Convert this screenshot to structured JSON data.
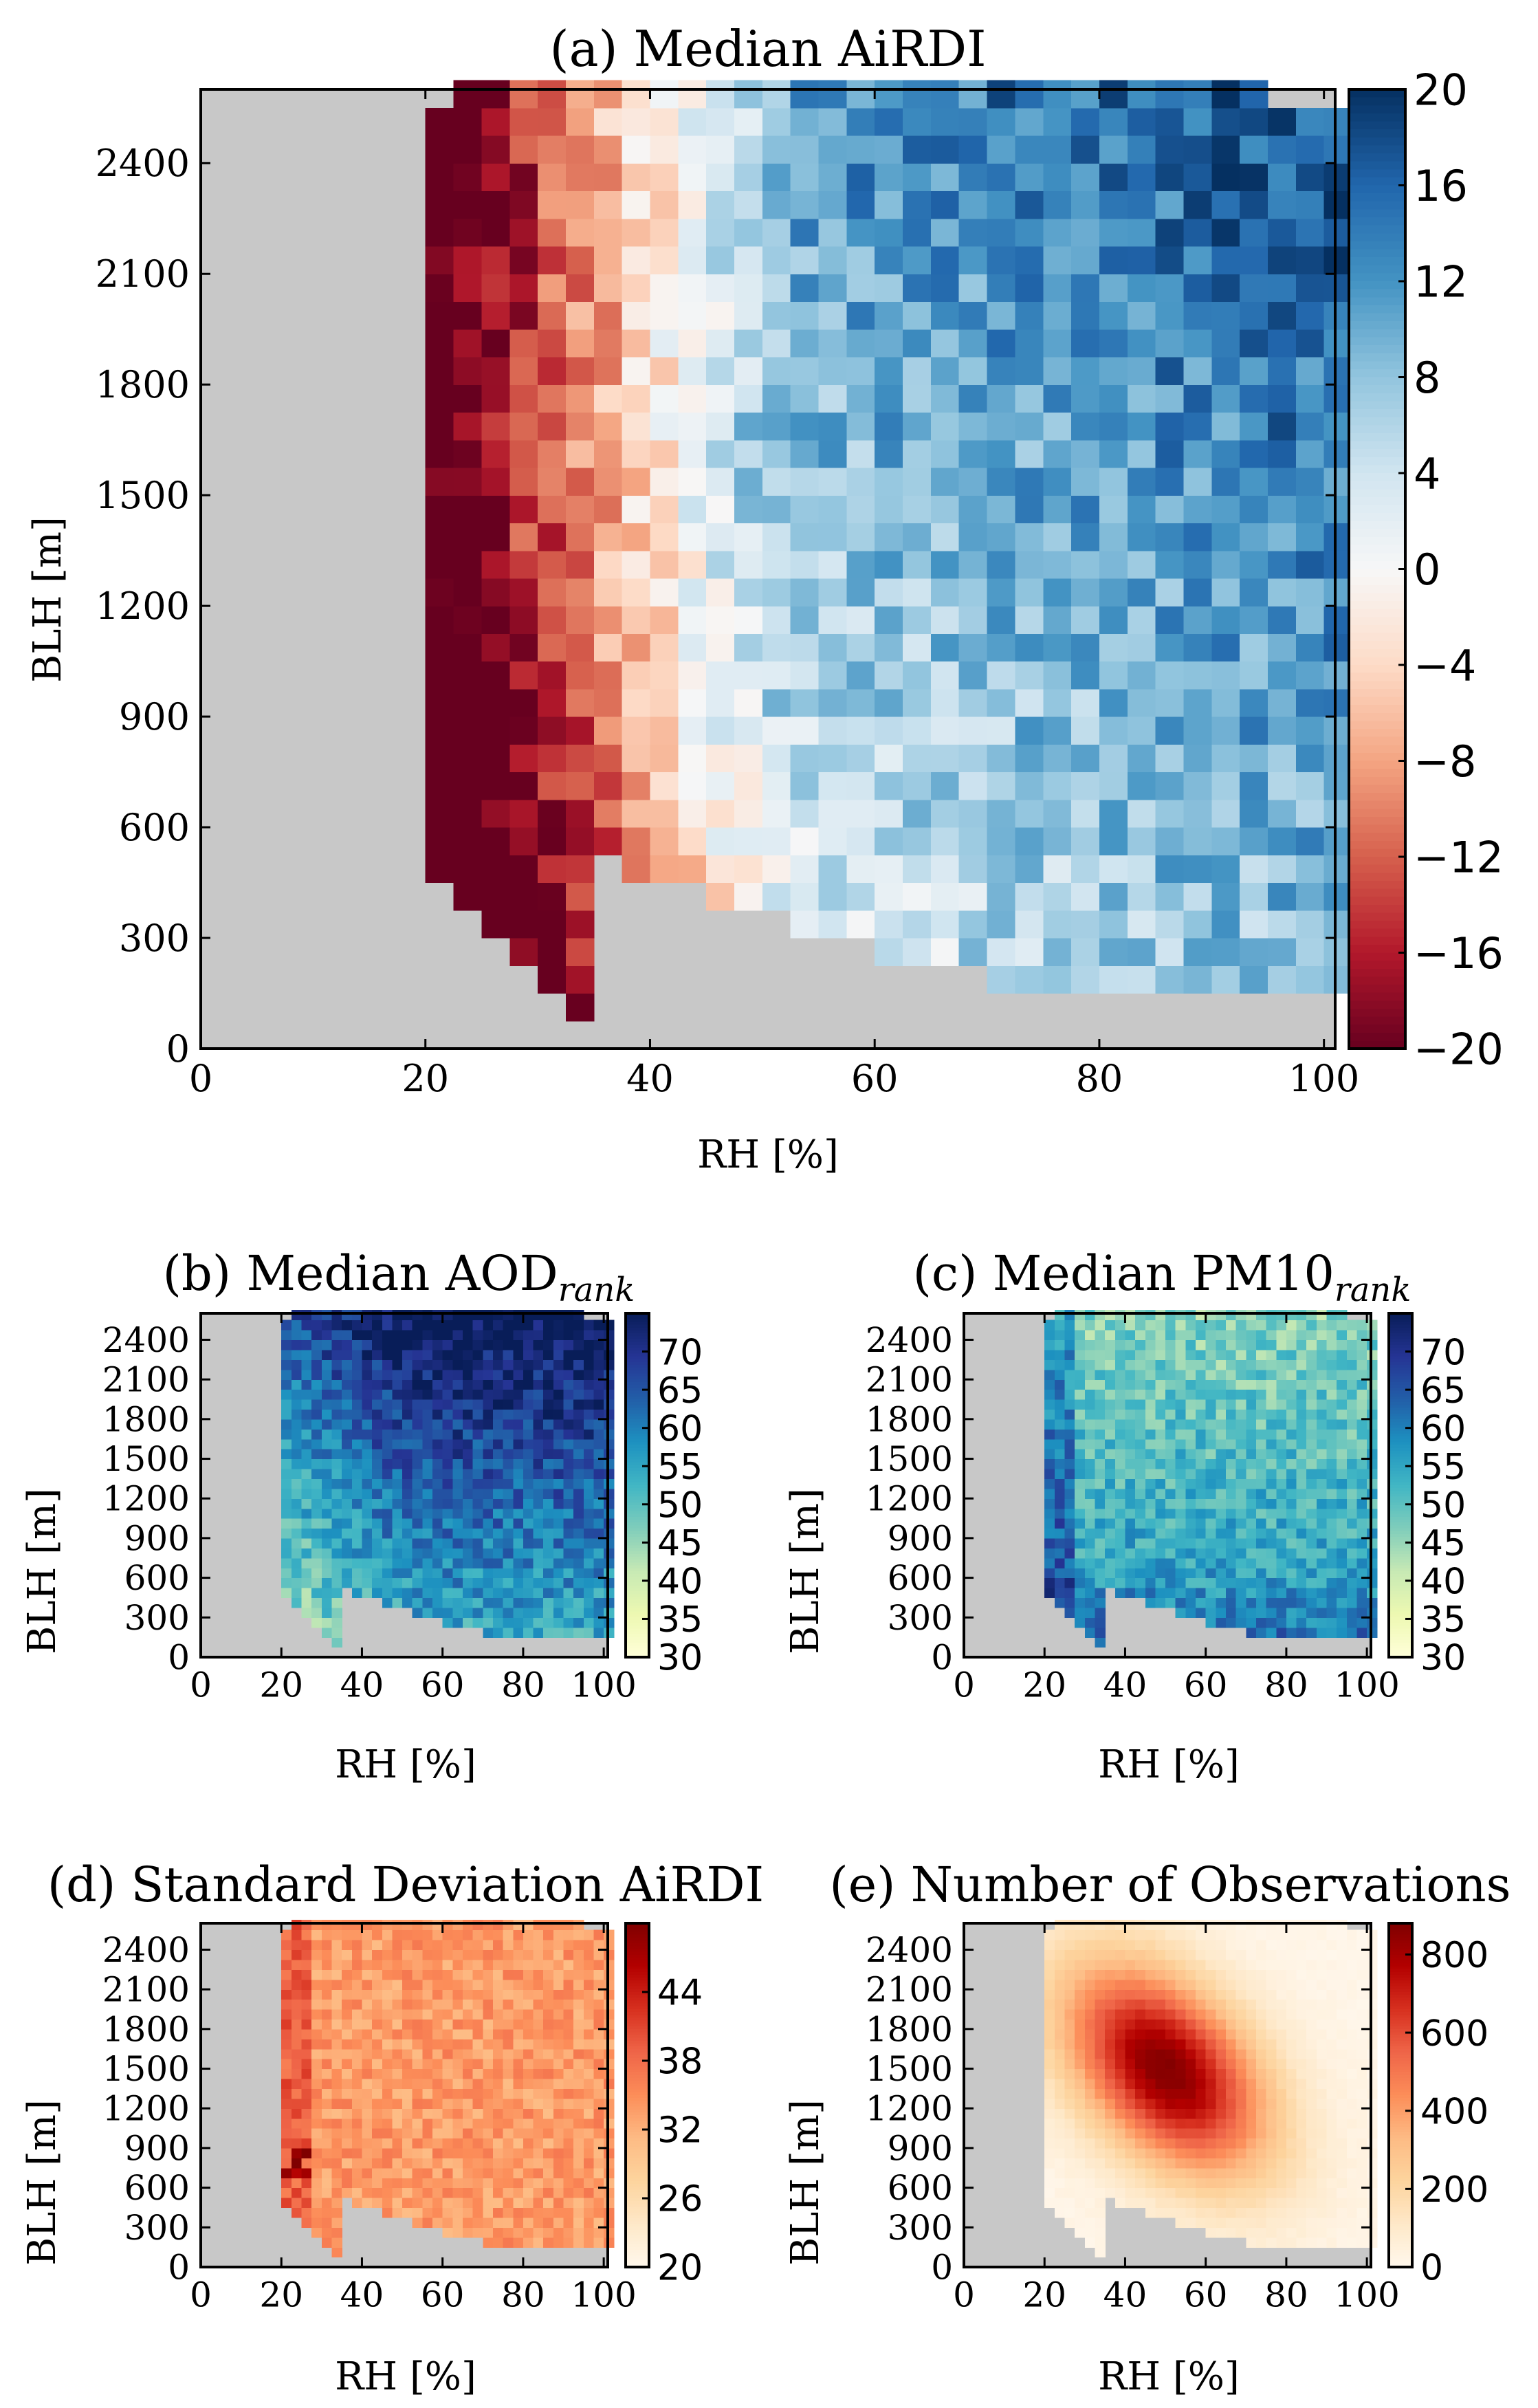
{
  "chart_data": [
    {
      "id": "a",
      "type": "heatmap",
      "title": "(a) Median AiRDI",
      "title_sub": "",
      "xlabel": "RH [%]",
      "ylabel": "BLH [m]",
      "xlim": [
        0,
        101
      ],
      "ylim": [
        0,
        2600
      ],
      "xticks": [
        0,
        20,
        40,
        60,
        80,
        100
      ],
      "yticks": [
        0,
        300,
        600,
        900,
        1200,
        1500,
        1800,
        2100,
        2400
      ],
      "colormap": "RdBu",
      "colorbar_range": [
        -20,
        20
      ],
      "colorbar_ticks": [
        "20",
        "16",
        "12",
        "8",
        "4",
        "0",
        "−4",
        "−8",
        "−12",
        "−16",
        "−20"
      ],
      "missing_color": "#c8c8c8",
      "trend": "Strongly negative AiRDI (red) at low RH near 20–35%, transitioning to positive values (blue) at high RH and higher BLH"
    },
    {
      "id": "b",
      "type": "heatmap",
      "title": "(b) Median AOD",
      "title_sub": "rank",
      "xlabel": "RH [%]",
      "ylabel": "BLH [m]",
      "xlim": [
        0,
        101
      ],
      "ylim": [
        0,
        2600
      ],
      "xticks": [
        0,
        20,
        40,
        60,
        80,
        100
      ],
      "yticks": [
        0,
        300,
        600,
        900,
        1200,
        1500,
        1800,
        2100,
        2400
      ],
      "colormap": "YlGnBu",
      "colorbar_range": [
        30,
        75
      ],
      "colorbar_ticks": [
        "70",
        "65",
        "60",
        "55",
        "50",
        "45",
        "40",
        "35",
        "30"
      ],
      "missing_color": "#c8c8c8",
      "trend": "Higher AOD rank at high BLH and mid-to-high RH"
    },
    {
      "id": "c",
      "type": "heatmap",
      "title": "(c) Median PM10",
      "title_sub": "rank",
      "xlabel": "RH [%]",
      "ylabel": "BLH [m]",
      "xlim": [
        0,
        101
      ],
      "ylim": [
        0,
        2600
      ],
      "xticks": [
        0,
        20,
        40,
        60,
        80,
        100
      ],
      "yticks": [
        0,
        300,
        600,
        900,
        1200,
        1500,
        1800,
        2100,
        2400
      ],
      "colormap": "YlGnBu",
      "colorbar_range": [
        30,
        75
      ],
      "colorbar_ticks": [
        "70",
        "65",
        "60",
        "55",
        "50",
        "45",
        "40",
        "35",
        "30"
      ],
      "missing_color": "#c8c8c8",
      "trend": "Higher PM10 rank at low BLH and along the low-RH edge"
    },
    {
      "id": "d",
      "type": "heatmap",
      "title": "(d) Standard Deviation AiRDI",
      "title_sub": "",
      "xlabel": "RH [%]",
      "ylabel": "BLH [m]",
      "xlim": [
        0,
        101
      ],
      "ylim": [
        0,
        2600
      ],
      "xticks": [
        0,
        20,
        40,
        60,
        80,
        100
      ],
      "yticks": [
        0,
        300,
        600,
        900,
        1200,
        1500,
        1800,
        2100,
        2400
      ],
      "colormap": "OrRd",
      "colorbar_range": [
        20,
        50
      ],
      "colorbar_ticks": [
        "44",
        "38",
        "32",
        "26",
        "20"
      ],
      "missing_color": "#c8c8c8",
      "trend": "Mostly 30–36 with higher values near the low-RH edge"
    },
    {
      "id": "e",
      "type": "heatmap",
      "title": "(e) Number of Observations",
      "title_sub": "",
      "xlabel": "RH [%]",
      "ylabel": "BLH [m]",
      "xlim": [
        0,
        101
      ],
      "ylim": [
        0,
        2600
      ],
      "xticks": [
        0,
        20,
        40,
        60,
        80,
        100
      ],
      "yticks": [
        0,
        300,
        600,
        900,
        1200,
        1500,
        1800,
        2100,
        2400
      ],
      "colormap": "OrRd",
      "colorbar_range": [
        0,
        880
      ],
      "colorbar_ticks": [
        "800",
        "600",
        "400",
        "200",
        "0"
      ],
      "missing_color": "#c8c8c8",
      "trend": "Peak ~850 observations near RH 45–55% and BLH 1200–1800 m"
    }
  ]
}
